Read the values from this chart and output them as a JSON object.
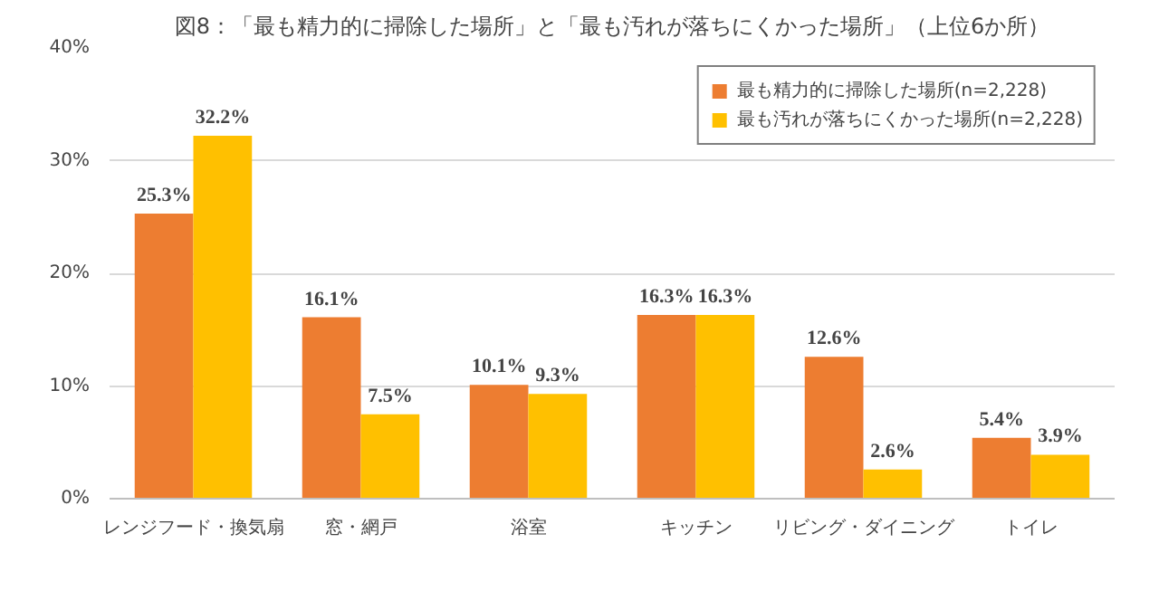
{
  "chart_data": {
    "type": "bar",
    "title": "図8：「最も精力的に掃除した場所」と「最も汚れが落ちにくかった場所」（上位6か所）",
    "categories": [
      "レンジフード・換気扇",
      "窓・網戸",
      "浴室",
      "キッチン",
      "リビング・ダイニング",
      "トイレ"
    ],
    "series": [
      {
        "name": "最も精力的に掃除した場所(n=2,228)",
        "color": "#ed7d31",
        "values": [
          25.3,
          16.1,
          10.1,
          16.3,
          12.6,
          5.4
        ]
      },
      {
        "name": "最も汚れが落ちにくかった場所(n=2,228)",
        "color": "#ffc000",
        "values": [
          32.2,
          7.5,
          9.3,
          16.3,
          2.6,
          3.9
        ]
      }
    ],
    "ylim": [
      0,
      40
    ],
    "yticks": [
      {
        "value": 0,
        "label": "0%"
      },
      {
        "value": 10,
        "label": "10%"
      },
      {
        "value": 20,
        "label": "20%"
      },
      {
        "value": 30,
        "label": "30%"
      },
      {
        "value": 40,
        "label": "40%"
      }
    ],
    "value_labels": [
      [
        "25.3%",
        "16.1%",
        "10.1%",
        "16.3%",
        "12.6%",
        "5.4%"
      ],
      [
        "32.2%",
        "7.5%",
        "9.3%",
        "16.3%",
        "2.6%",
        "3.9%"
      ]
    ],
    "grid": "y",
    "legend": "top right"
  }
}
